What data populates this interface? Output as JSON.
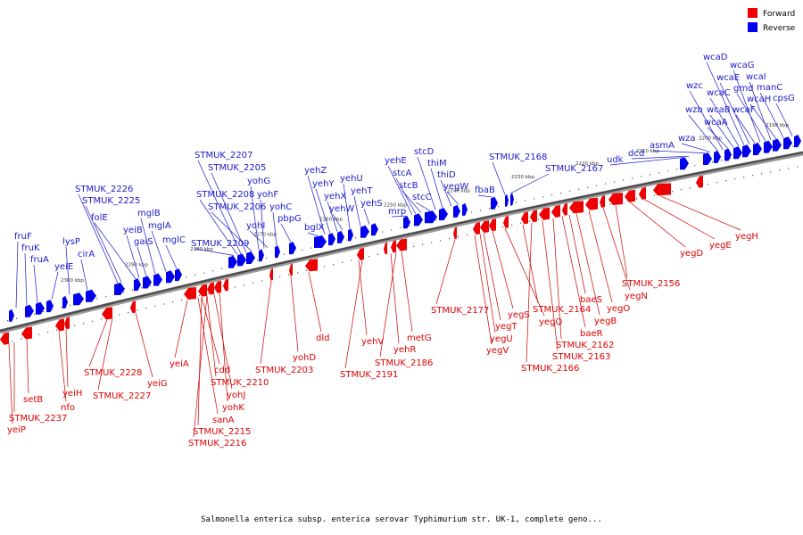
{
  "caption": "Salmonella enterica subsp. enterica serovar Typhimurium str. UK-1, complete geno...",
  "legend": {
    "forward": {
      "label": "Forward",
      "color": "#ee0000"
    },
    "reverse": {
      "label": "Reverse",
      "color": "#0000ee"
    }
  },
  "ticks": [
    "2190 kbp",
    "2200 kbp",
    "2210 kbp",
    "2220 kbp",
    "2230 kbp",
    "2240 kbp",
    "2250 kbp",
    "2260 kbp",
    "2270 kbp",
    "2280 kbp",
    "2290 kbp",
    "2300 kbp"
  ],
  "reverse_genes": [
    "fruF",
    "fruK",
    "fruA",
    "yeiE",
    "lysP",
    "cirA",
    "STMUK_2226",
    "STMUK_2225",
    "folE",
    "yeiB",
    "galS",
    "mglB",
    "mglA",
    "mglC",
    "STMUK_2209",
    "STMUK_2208",
    "STMUK_2207",
    "STMUK_2205",
    "STMUK_2206",
    "yohG",
    "yohF",
    "yohI",
    "yohC",
    "pbpG",
    "bglX",
    "yehZ",
    "yehY",
    "yehX",
    "yehW",
    "yehU",
    "yehT",
    "yehS",
    "mrp",
    "yehE",
    "stcA",
    "stcB",
    "stcC",
    "stcD",
    "thiM",
    "thiD",
    "yegW",
    "fbaB",
    "STMUK_2168",
    "STMUK_2167",
    "udk",
    "dcd",
    "asmA",
    "wza",
    "wzb",
    "wzc",
    "wcaA",
    "wcaB",
    "wcaC",
    "wcaD",
    "wcaE",
    "wcaF",
    "wcaG",
    "gmd",
    "wcaI",
    "wcaH",
    "manC",
    "cpsG"
  ],
  "forward_genes": [
    "yeiP",
    "STMUK_2237",
    "setB",
    "nfo",
    "yeiH",
    "STMUK_2228",
    "STMUK_2227",
    "yeiG",
    "yeiA",
    "cdd",
    "STMUK_2210",
    "yohJ",
    "yohK",
    "sanA",
    "STMUK_2215",
    "STMUK_2216",
    "STMUK_2203",
    "yohD",
    "dld",
    "yehV",
    "STMUK_2191",
    "yehR",
    "STMUK_2186",
    "metG",
    "STMUK_2177",
    "yegS",
    "yegT",
    "yegU",
    "yegV",
    "yegQ",
    "STMUK_2164",
    "STMUK_2166",
    "STMUK_2163",
    "STMUK_2162",
    "baeR",
    "baeS",
    "yegB",
    "yegO",
    "yegN",
    "STMUK_2156",
    "yegD",
    "yegE",
    "yegH"
  ]
}
